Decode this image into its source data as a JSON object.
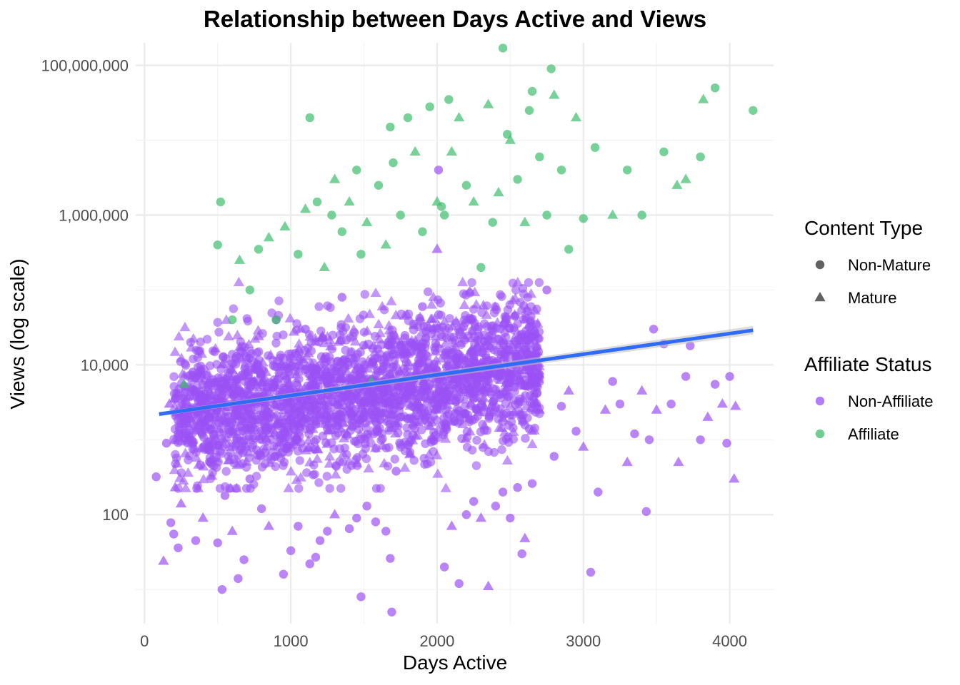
{
  "chart_data": {
    "type": "scatter",
    "title": "Relationship between Days Active and Views",
    "xlabel": "Days Active",
    "ylabel": "Views (log scale)",
    "xlim": [
      -60,
      4300
    ],
    "ylim": [
      3.5,
      200000000
    ],
    "y_scale": "log10",
    "grid": true,
    "x_ticks": [
      0,
      1000,
      2000,
      3000,
      4000
    ],
    "x_tick_labels": [
      "0",
      "1000",
      "2000",
      "3000",
      "4000"
    ],
    "y_ticks": [
      100,
      10000,
      1000000,
      100000000
    ],
    "y_tick_labels": [
      "100",
      "10,000",
      "1,000,000",
      "100,000,000"
    ],
    "legend_position": "right",
    "legends": [
      {
        "title": "Content Type",
        "items": [
          {
            "label": "Non-Mature",
            "shape": "circle"
          },
          {
            "label": "Mature",
            "shape": "triangle"
          }
        ]
      },
      {
        "title": "Affiliate Status",
        "items": [
          {
            "label": "Non-Affiliate",
            "color": "#9b51f5"
          },
          {
            "label": "Affiliate",
            "color": "#3dbe6e"
          }
        ]
      }
    ],
    "series": [
      {
        "name": "Non-Affiliate",
        "color": "#9b51f5",
        "density_region": {
          "x_range": [
            200,
            2700
          ],
          "log10_views_center": [
            3.3,
            4.0
          ],
          "log10_views_spread": 0.75
        },
        "points": [
          [
            80,
            320,
            "circle"
          ],
          [
            130,
            24,
            "triangle"
          ],
          [
            150,
            900,
            "circle"
          ],
          [
            170,
            3000,
            "triangle"
          ],
          [
            180,
            78,
            "circle"
          ],
          [
            200,
            55,
            "circle"
          ],
          [
            210,
            230,
            "triangle"
          ],
          [
            230,
            36,
            "circle"
          ],
          [
            250,
            140,
            "triangle"
          ],
          [
            280,
            2000,
            "circle"
          ],
          [
            330,
            8000,
            "circle"
          ],
          [
            350,
            45,
            "circle"
          ],
          [
            400,
            90,
            "triangle"
          ],
          [
            450,
            500,
            "circle"
          ],
          [
            500,
            42,
            "circle"
          ],
          [
            530,
            10,
            "circle"
          ],
          [
            550,
            180,
            "circle"
          ],
          [
            600,
            60,
            "triangle"
          ],
          [
            640,
            14,
            "circle"
          ],
          [
            680,
            25,
            "circle"
          ],
          [
            720,
            300,
            "circle"
          ],
          [
            780,
            24000,
            "triangle"
          ],
          [
            800,
            120,
            "circle"
          ],
          [
            850,
            70,
            "triangle"
          ],
          [
            900,
            40000,
            "circle"
          ],
          [
            950,
            16,
            "circle"
          ],
          [
            1000,
            33,
            "circle"
          ],
          [
            1050,
            70,
            "circle"
          ],
          [
            1100,
            30000,
            "circle"
          ],
          [
            1130,
            22,
            "circle"
          ],
          [
            1170,
            27,
            "circle"
          ],
          [
            1200,
            45,
            "circle"
          ],
          [
            1250,
            60,
            "circle"
          ],
          [
            1300,
            100,
            "triangle"
          ],
          [
            1350,
            80000,
            "circle"
          ],
          [
            1400,
            65,
            "circle"
          ],
          [
            1450,
            90,
            "circle"
          ],
          [
            1480,
            8,
            "circle"
          ],
          [
            1520,
            130,
            "circle"
          ],
          [
            1580,
            80,
            "circle"
          ],
          [
            1650,
            60,
            "circle"
          ],
          [
            1680,
            26,
            "circle"
          ],
          [
            1690,
            5,
            "circle"
          ],
          [
            1720,
            380,
            "circle"
          ],
          [
            1800,
            5000,
            "circle"
          ],
          [
            1900,
            60000,
            "circle"
          ],
          [
            2000,
            350000,
            "triangle"
          ],
          [
            2010,
            4000000,
            "circle"
          ],
          [
            2050,
            20,
            "circle"
          ],
          [
            2100,
            70,
            "triangle"
          ],
          [
            2150,
            12,
            "circle"
          ],
          [
            2200,
            100,
            "circle"
          ],
          [
            2250,
            150,
            "circle"
          ],
          [
            2300,
            90,
            "triangle"
          ],
          [
            2350,
            11,
            "triangle"
          ],
          [
            2400,
            130,
            "circle"
          ],
          [
            2450,
            200,
            "circle"
          ],
          [
            2500,
            90,
            "circle"
          ],
          [
            2550,
            230,
            "circle"
          ],
          [
            2580,
            30,
            "circle"
          ],
          [
            2600,
            48,
            "triangle"
          ],
          [
            2630,
            1400,
            "circle"
          ],
          [
            2650,
            260,
            "circle"
          ],
          [
            2700,
            2500,
            "triangle"
          ],
          [
            2750,
            100000,
            "circle"
          ],
          [
            2800,
            600,
            "circle"
          ],
          [
            2850,
            2800,
            "circle"
          ],
          [
            2900,
            4500,
            "triangle"
          ],
          [
            2950,
            1300,
            "circle"
          ],
          [
            3000,
            800,
            "triangle"
          ],
          [
            3050,
            17,
            "circle"
          ],
          [
            3100,
            200,
            "circle"
          ],
          [
            3150,
            2500,
            "triangle"
          ],
          [
            3200,
            6000,
            "circle"
          ],
          [
            3250,
            3000,
            "circle"
          ],
          [
            3300,
            500,
            "triangle"
          ],
          [
            3350,
            1200,
            "circle"
          ],
          [
            3400,
            4500,
            "triangle"
          ],
          [
            3430,
            110,
            "circle"
          ],
          [
            3450,
            1000,
            "circle"
          ],
          [
            3480,
            30000,
            "circle"
          ],
          [
            3500,
            2500,
            "triangle"
          ],
          [
            3550,
            19000,
            "circle"
          ],
          [
            3600,
            3000,
            "circle"
          ],
          [
            3650,
            500,
            "triangle"
          ],
          [
            3700,
            7000,
            "circle"
          ],
          [
            3730,
            18000,
            "circle"
          ],
          [
            3800,
            1000,
            "circle"
          ],
          [
            3850,
            2000,
            "triangle"
          ],
          [
            3900,
            5500,
            "circle"
          ],
          [
            3950,
            3000,
            "triangle"
          ],
          [
            3980,
            900,
            "circle"
          ],
          [
            4000,
            7000,
            "circle"
          ],
          [
            4030,
            300,
            "triangle"
          ],
          [
            4040,
            2800,
            "triangle"
          ]
        ]
      },
      {
        "name": "Affiliate",
        "color": "#3dbe6e",
        "points": [
          [
            270,
            5500,
            "triangle"
          ],
          [
            500,
            400000,
            "circle"
          ],
          [
            520,
            1500000,
            "circle"
          ],
          [
            600,
            40000,
            "circle"
          ],
          [
            650,
            250000,
            "triangle"
          ],
          [
            720,
            100000,
            "circle"
          ],
          [
            780,
            350000,
            "circle"
          ],
          [
            850,
            500000,
            "triangle"
          ],
          [
            900,
            40000,
            "circle"
          ],
          [
            960,
            700000,
            "triangle"
          ],
          [
            1050,
            300000,
            "circle"
          ],
          [
            1100,
            1200000,
            "triangle"
          ],
          [
            1130,
            20000000,
            "circle"
          ],
          [
            1180,
            1500000,
            "circle"
          ],
          [
            1230,
            200000,
            "triangle"
          ],
          [
            1280,
            1000000,
            "circle"
          ],
          [
            1300,
            3000000,
            "triangle"
          ],
          [
            1350,
            600000,
            "circle"
          ],
          [
            1400,
            1500000,
            "triangle"
          ],
          [
            1450,
            4000000,
            "circle"
          ],
          [
            1480,
            300000,
            "circle"
          ],
          [
            1520,
            800000,
            "triangle"
          ],
          [
            1550,
            6000,
            "triangle"
          ],
          [
            1600,
            2500000,
            "circle"
          ],
          [
            1650,
            400000,
            "triangle"
          ],
          [
            1680,
            15000000,
            "circle"
          ],
          [
            1700,
            5000000,
            "circle"
          ],
          [
            1750,
            1000000,
            "circle"
          ],
          [
            1800,
            20000000,
            "circle"
          ],
          [
            1850,
            7000000,
            "triangle"
          ],
          [
            1900,
            600000,
            "circle"
          ],
          [
            1950,
            28000000,
            "circle"
          ],
          [
            2000,
            1500000,
            "triangle"
          ],
          [
            2030,
            1300000,
            "circle"
          ],
          [
            2050,
            1000000,
            "circle"
          ],
          [
            2080,
            35000000,
            "circle"
          ],
          [
            2100,
            7000000,
            "triangle"
          ],
          [
            2150,
            20000000,
            "triangle"
          ],
          [
            2200,
            2500000,
            "circle"
          ],
          [
            2250,
            1500000,
            "triangle"
          ],
          [
            2300,
            200000,
            "circle"
          ],
          [
            2350,
            30000000,
            "triangle"
          ],
          [
            2380,
            800000,
            "circle"
          ],
          [
            2420,
            2000000,
            "triangle"
          ],
          [
            2450,
            170000000,
            "circle"
          ],
          [
            2480,
            12000000,
            "circle"
          ],
          [
            2500,
            10000000,
            "triangle"
          ],
          [
            2550,
            3000000,
            "circle"
          ],
          [
            2600,
            800000,
            "triangle"
          ],
          [
            2630,
            25000000,
            "circle"
          ],
          [
            2650,
            45000000,
            "circle"
          ],
          [
            2700,
            6000000,
            "circle"
          ],
          [
            2750,
            1000000,
            "circle"
          ],
          [
            2780,
            90000000,
            "circle"
          ],
          [
            2800,
            40000000,
            "triangle"
          ],
          [
            2850,
            4000000,
            "circle"
          ],
          [
            2900,
            350000,
            "circle"
          ],
          [
            2950,
            20000000,
            "triangle"
          ],
          [
            3000,
            900000,
            "circle"
          ],
          [
            3080,
            8000000,
            "circle"
          ],
          [
            3200,
            1000000,
            "triangle"
          ],
          [
            3300,
            4000000,
            "circle"
          ],
          [
            3400,
            1000000,
            "circle"
          ],
          [
            3550,
            7000000,
            "circle"
          ],
          [
            3640,
            2500000,
            "triangle"
          ],
          [
            3700,
            3000000,
            "triangle"
          ],
          [
            3800,
            6000000,
            "circle"
          ],
          [
            3820,
            35000000,
            "triangle"
          ],
          [
            3900,
            50000000,
            "circle"
          ],
          [
            4160,
            25000000,
            "circle"
          ]
        ]
      }
    ],
    "trend_line": {
      "color": "#2f6bf7",
      "method": "linear fit on log scale",
      "points": [
        [
          100,
          2200
        ],
        [
          4160,
          29000
        ]
      ]
    }
  }
}
